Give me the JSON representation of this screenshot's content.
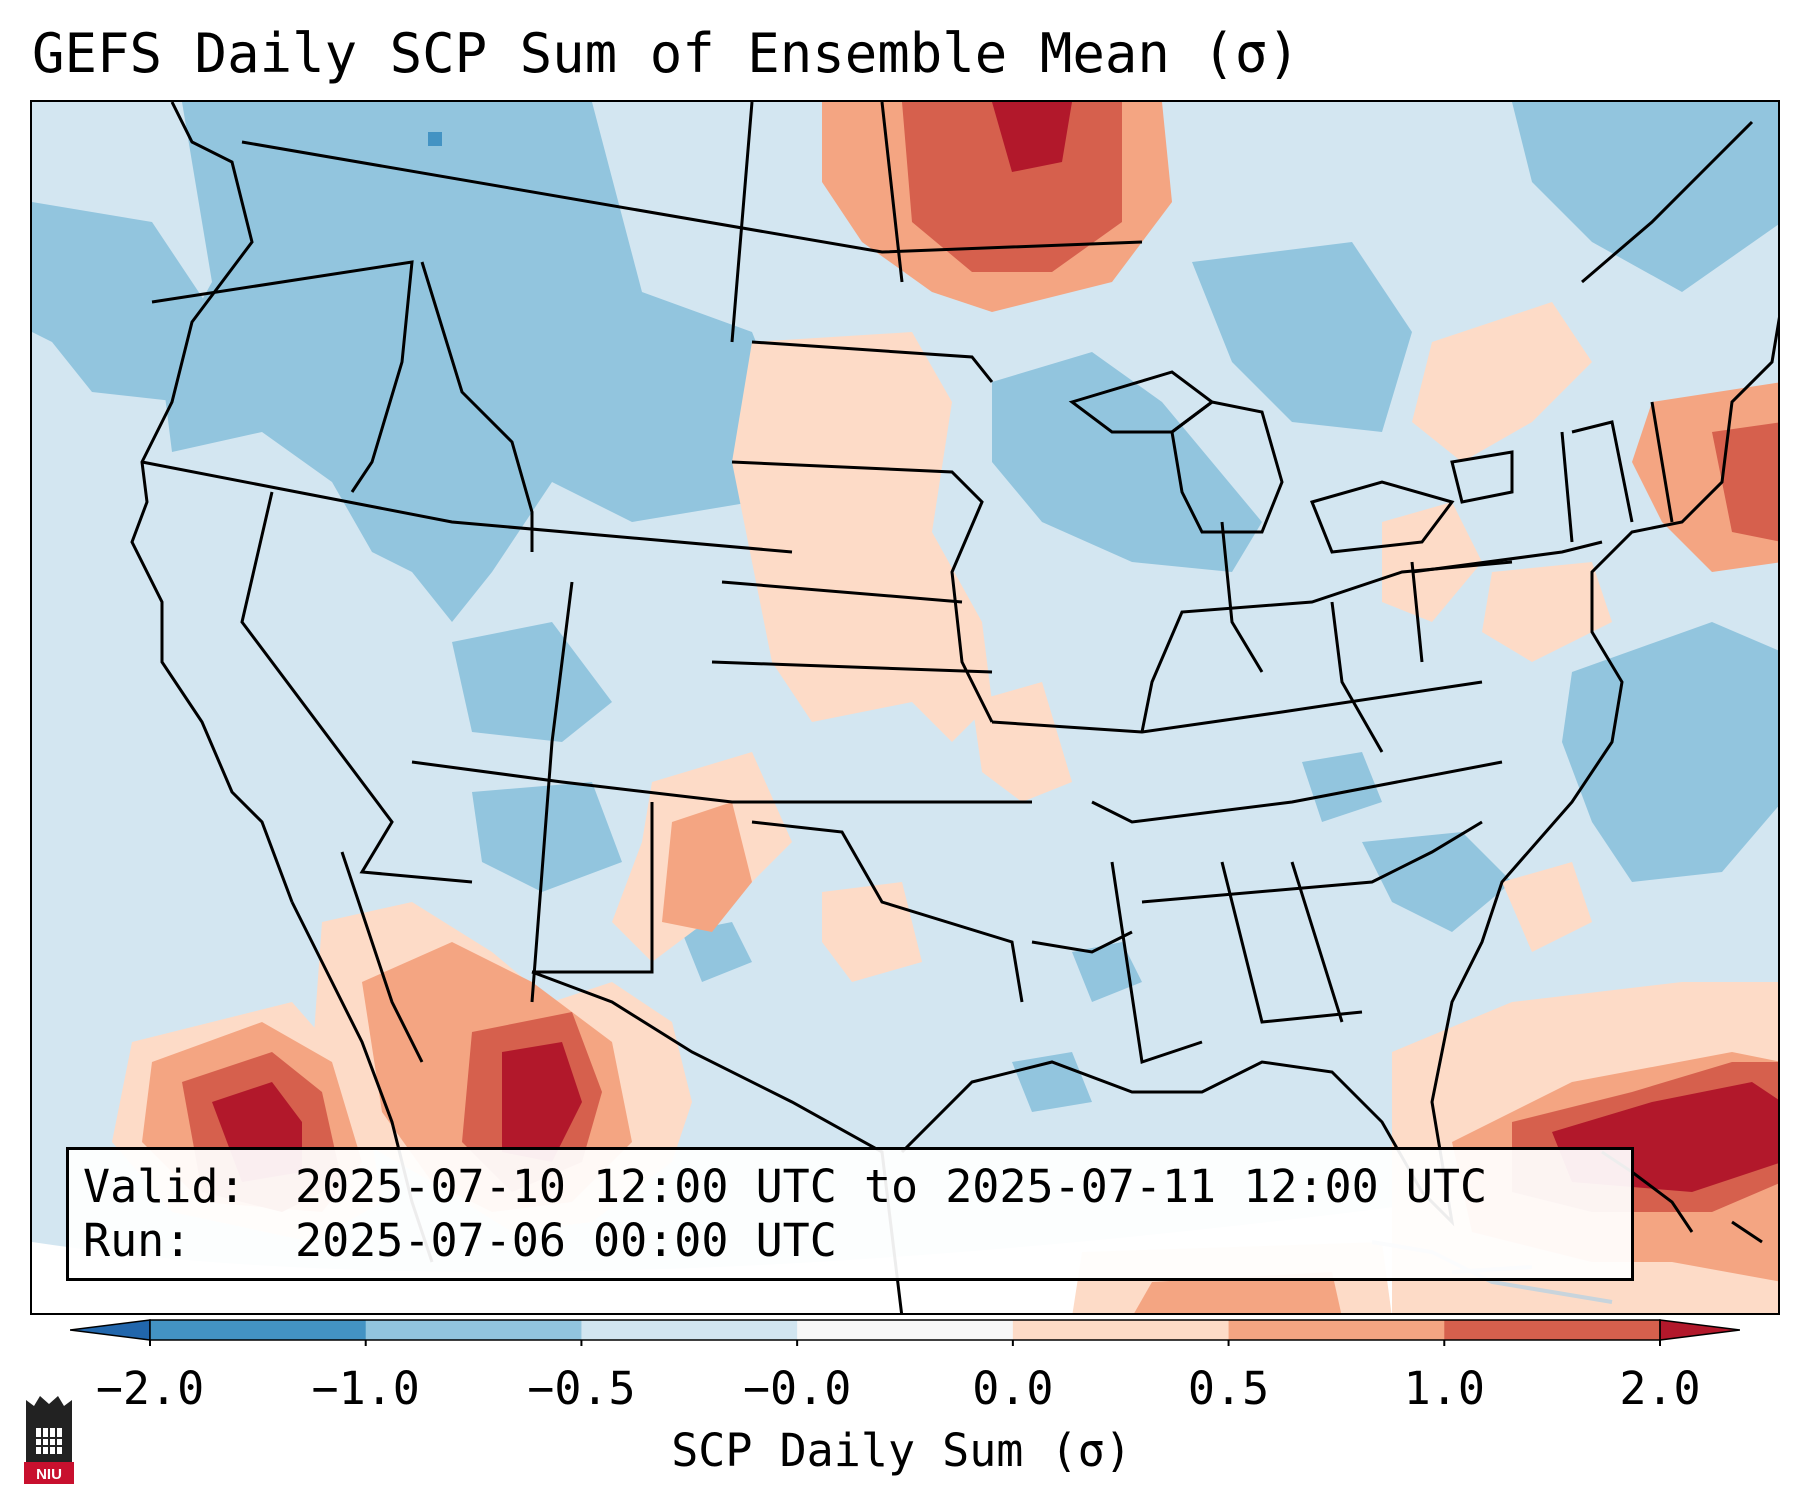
{
  "title": "GEFS Daily SCP Sum of Ensemble Mean (σ)",
  "info": {
    "valid_key": "Valid:",
    "valid_value": "2025-07-10 12:00 UTC to 2025-07-11 12:00 UTC",
    "run_key": "Run:",
    "run_value": "2025-07-06 00:00 UTC"
  },
  "colorbar": {
    "label": "SCP Daily Sum (σ)",
    "ticks": [
      "−2.0",
      "−1.0",
      "−0.5",
      "−0.0",
      "0.0",
      "0.5",
      "1.0",
      "2.0"
    ],
    "bins": [
      {
        "color": "#4393c3"
      },
      {
        "color": "#92c5de"
      },
      {
        "color": "#d1e5f0"
      },
      {
        "color": "#f7f7f7"
      },
      {
        "color": "#fddbc7"
      },
      {
        "color": "#f4a582"
      },
      {
        "color": "#d6604d"
      }
    ],
    "under_color": "#2166ac",
    "over_color": "#b2182b"
  },
  "colors": {
    "background_level": "#d1e5f0",
    "neg_moderate": "#92c5de",
    "neg_strong": "#4393c3",
    "pos_slight": "#fddbc7",
    "pos_moderate": "#f4a582",
    "pos_strong": "#d6604d",
    "pos_extreme": "#b2182b"
  },
  "logo": {
    "text": "NIU"
  }
}
